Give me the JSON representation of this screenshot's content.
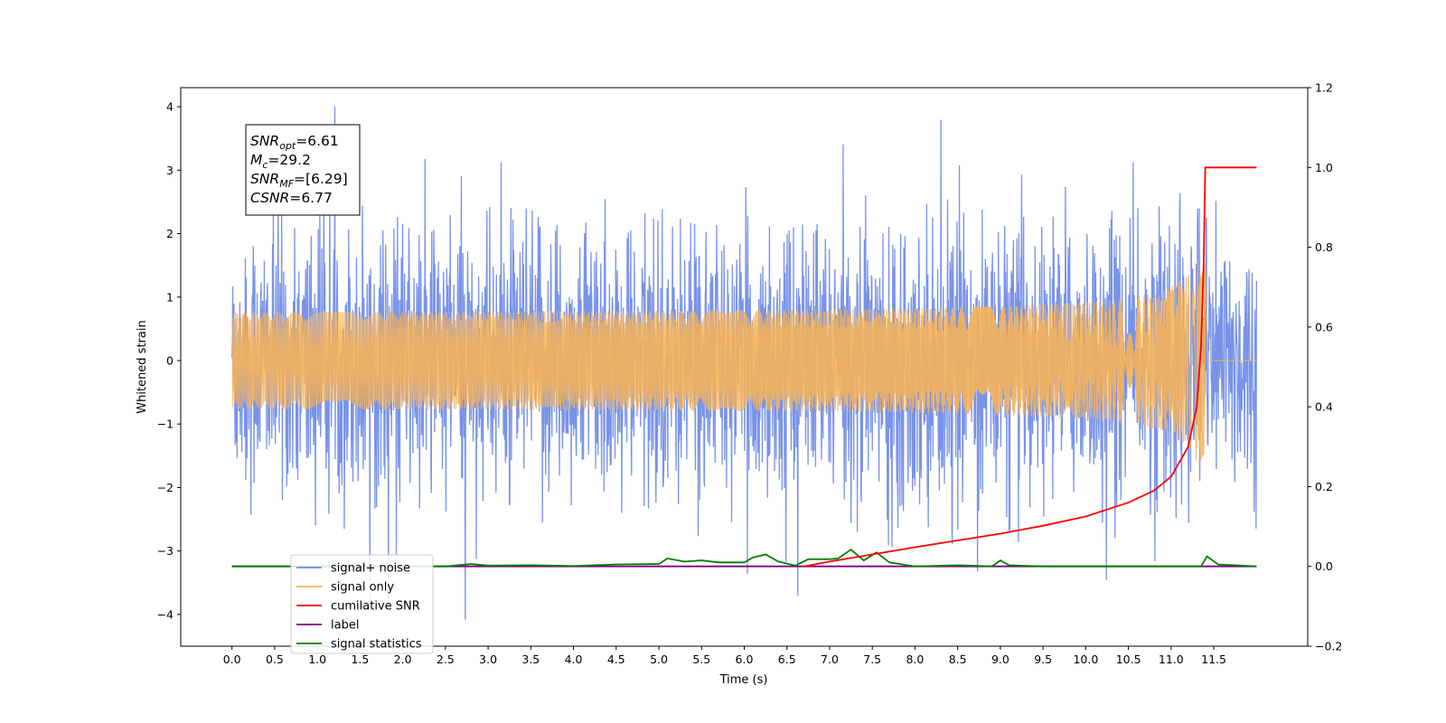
{
  "chart_data": {
    "type": "line",
    "xlabel": "Time (s)",
    "ylabel": "Whitened strain",
    "xlim": [
      -0.6,
      12.6
    ],
    "ylim_left": [
      -4.5,
      4.3
    ],
    "ylim_right": [
      -0.2,
      1.2
    ],
    "x_ticks": [
      "0.0",
      "0.5",
      "1.0",
      "1.5",
      "2.0",
      "2.5",
      "3.0",
      "3.5",
      "4.0",
      "4.5",
      "5.0",
      "5.5",
      "6.0",
      "6.5",
      "7.0",
      "7.5",
      "8.0",
      "8.5",
      "9.0",
      "9.5",
      "10.0",
      "10.5",
      "11.0",
      "11.5"
    ],
    "y_ticks_left": [
      "−4",
      "−3",
      "−2",
      "−1",
      "0",
      "1",
      "2",
      "3",
      "4"
    ],
    "y_ticks_right": [
      "−0.2",
      "0.0",
      "0.2",
      "0.4",
      "0.6",
      "0.8",
      "1.0",
      "1.2"
    ],
    "annotation": {
      "lines": [
        {
          "main": "SNR",
          "sub": "opt",
          "value": "=6.61"
        },
        {
          "main": "M",
          "sub": "c",
          "value": "=29.2"
        },
        {
          "main": "SNR",
          "sub": "MF",
          "value": "=[6.29]"
        },
        {
          "main": "CSNR",
          "sub": "",
          "value": "=6.77"
        }
      ]
    },
    "series": [
      {
        "name": "signal+ noise",
        "color": "#6d8ae6",
        "axis": "left",
        "t_range": [
          0,
          12.0
        ],
        "noise_amplitude": 1.0,
        "max_peak": 3.92,
        "min_trough": -4.12
      },
      {
        "name": "signal only",
        "color": "#f5b25a",
        "axis": "left",
        "t_range": [
          0,
          12.0
        ],
        "chirp_merger_time": 11.4,
        "peak_amplitude": 1.6
      },
      {
        "name": "cumilative SNR",
        "color": "#ff0000",
        "axis": "right",
        "points": [
          [
            6.7,
            0.0
          ],
          [
            7.0,
            0.012
          ],
          [
            7.5,
            0.03
          ],
          [
            8.0,
            0.048
          ],
          [
            8.5,
            0.065
          ],
          [
            9.0,
            0.082
          ],
          [
            9.5,
            0.102
          ],
          [
            10.0,
            0.125
          ],
          [
            10.5,
            0.16
          ],
          [
            10.8,
            0.19
          ],
          [
            11.0,
            0.225
          ],
          [
            11.2,
            0.3
          ],
          [
            11.3,
            0.4
          ],
          [
            11.35,
            0.55
          ],
          [
            11.38,
            0.75
          ],
          [
            11.4,
            1.0
          ],
          [
            12.0,
            1.0
          ]
        ]
      },
      {
        "name": "label",
        "color": "#800080",
        "axis": "right",
        "points": [
          [
            0,
            0.0
          ],
          [
            12.0,
            0.0
          ]
        ]
      },
      {
        "name": "signal statistics",
        "color": "#008000",
        "axis": "right",
        "points": [
          [
            0.0,
            0.0
          ],
          [
            2.0,
            0.0
          ],
          [
            2.5,
            0.0
          ],
          [
            2.8,
            0.006
          ],
          [
            3.0,
            0.002
          ],
          [
            3.5,
            0.003
          ],
          [
            4.0,
            0.001
          ],
          [
            4.5,
            0.005
          ],
          [
            5.0,
            0.006
          ],
          [
            5.1,
            0.02
          ],
          [
            5.3,
            0.012
          ],
          [
            5.5,
            0.015
          ],
          [
            5.7,
            0.01
          ],
          [
            6.0,
            0.01
          ],
          [
            6.1,
            0.022
          ],
          [
            6.25,
            0.03
          ],
          [
            6.4,
            0.012
          ],
          [
            6.6,
            0.002
          ],
          [
            6.75,
            0.018
          ],
          [
            7.0,
            0.018
          ],
          [
            7.1,
            0.02
          ],
          [
            7.25,
            0.042
          ],
          [
            7.4,
            0.015
          ],
          [
            7.55,
            0.035
          ],
          [
            7.7,
            0.01
          ],
          [
            8.0,
            0.0
          ],
          [
            8.5,
            0.003
          ],
          [
            8.9,
            0.0
          ],
          [
            9.0,
            0.015
          ],
          [
            9.1,
            0.003
          ],
          [
            9.5,
            0.0
          ],
          [
            11.0,
            0.0
          ],
          [
            11.35,
            0.0
          ],
          [
            11.42,
            0.025
          ],
          [
            11.55,
            0.005
          ],
          [
            12.0,
            0.0
          ]
        ]
      }
    ],
    "legend": {
      "position": "lower-left",
      "entries": [
        "signal+ noise",
        "signal only",
        "cumilative SNR",
        "label",
        "signal statistics"
      ]
    }
  }
}
